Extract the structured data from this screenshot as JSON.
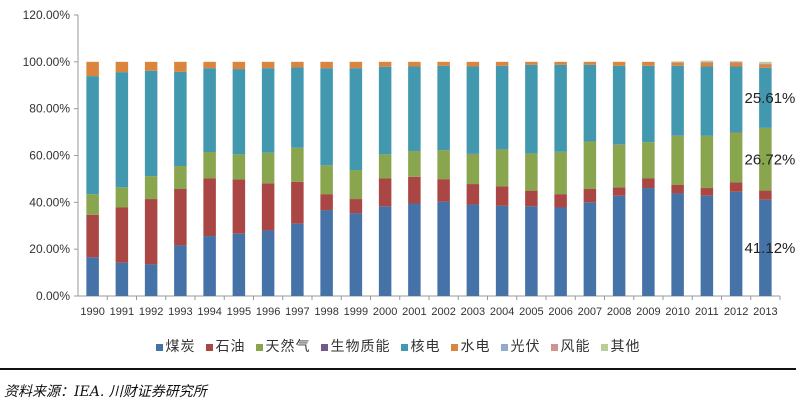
{
  "chart_data": {
    "type": "bar",
    "stacked": true,
    "title": "",
    "xlabel": "",
    "ylabel": "",
    "ylim": [
      0,
      120
    ],
    "yticks": [
      "0.00%",
      "20.00%",
      "40.00%",
      "60.00%",
      "80.00%",
      "100.00%",
      "120.00%"
    ],
    "categories": [
      "1990",
      "1991",
      "1992",
      "1993",
      "1994",
      "1995",
      "1996",
      "1997",
      "1998",
      "1999",
      "2000",
      "2001",
      "2002",
      "2003",
      "2004",
      "2005",
      "2006",
      "2007",
      "2008",
      "2009",
      "2010",
      "2011",
      "2012",
      "2013"
    ],
    "series": [
      {
        "name": "煤炭",
        "color": "#4572A7",
        "values": [
          16.5,
          14.2,
          13.5,
          21.6,
          25.6,
          26.6,
          28.0,
          30.9,
          36.7,
          35.4,
          38.3,
          39.5,
          40.3,
          39.1,
          38.5,
          38.3,
          37.8,
          40.0,
          42.8,
          46.1,
          43.8,
          42.8,
          44.5,
          41.12
        ]
      },
      {
        "name": "石油",
        "color": "#AA4643",
        "values": [
          18.2,
          23.6,
          27.9,
          24.1,
          24.6,
          23.2,
          20.1,
          17.9,
          6.8,
          6.0,
          11.9,
          11.4,
          9.6,
          8.7,
          8.3,
          6.7,
          5.7,
          5.7,
          3.6,
          4.1,
          3.6,
          3.3,
          4.0,
          3.9
        ]
      },
      {
        "name": "天然气",
        "color": "#89A54E",
        "values": [
          8.8,
          8.6,
          9.8,
          9.8,
          11.3,
          10.7,
          13.1,
          14.5,
          12.3,
          12.4,
          10.3,
          11.0,
          12.4,
          12.7,
          15.8,
          15.9,
          18.1,
          20.3,
          18.2,
          15.5,
          21.0,
          22.3,
          21.3,
          26.72
        ]
      },
      {
        "name": "生物质能",
        "color": "#71588F",
        "values": [
          0,
          0,
          0,
          0,
          0,
          0,
          0,
          0,
          0,
          0,
          0,
          0,
          0,
          0.2,
          0,
          0,
          0,
          0,
          0.2,
          0,
          0.2,
          0,
          0.2,
          0.1
        ]
      },
      {
        "name": "核电",
        "color": "#4198AF",
        "values": [
          50.4,
          49.2,
          45.0,
          40.2,
          35.8,
          36.4,
          36.1,
          34.3,
          41.5,
          43.5,
          37.4,
          36.1,
          36.0,
          37.3,
          35.7,
          37.8,
          37.1,
          32.7,
          33.5,
          32.6,
          29.7,
          29.6,
          28.0,
          25.61
        ]
      },
      {
        "name": "水电",
        "color": "#DB843D",
        "values": [
          6.1,
          4.4,
          3.8,
          4.3,
          2.7,
          3.1,
          2.7,
          2.4,
          2.7,
          2.7,
          2.1,
          2.0,
          1.7,
          2.0,
          1.7,
          1.3,
          1.3,
          1.3,
          1.7,
          1.7,
          1.4,
          1.7,
          1.7,
          1.4
        ]
      },
      {
        "name": "光伏",
        "color": "#93A9CF",
        "values": [
          0,
          0,
          0,
          0,
          0,
          0,
          0,
          0,
          0,
          0,
          0,
          0,
          0,
          0,
          0,
          0,
          0,
          0,
          0,
          0,
          0.1,
          0.2,
          0.2,
          0.3
        ]
      },
      {
        "name": "风能",
        "color": "#D19392",
        "values": [
          0,
          0,
          0,
          0,
          0,
          0,
          0,
          0,
          0,
          0,
          0,
          0,
          0,
          0,
          0,
          0,
          0,
          0,
          0,
          0,
          0.1,
          0.1,
          0.1,
          0.2
        ]
      },
      {
        "name": "其他",
        "color": "#B9CD96",
        "values": [
          0,
          0,
          0,
          0,
          0,
          0,
          0,
          0,
          0,
          0,
          0,
          0,
          0,
          0,
          0,
          0,
          0,
          0,
          0,
          0,
          0.3,
          0.5,
          0.3,
          0.65
        ]
      }
    ],
    "data_labels": [
      {
        "category": "2013",
        "series": "核电",
        "text": "25.61%"
      },
      {
        "category": "2013",
        "series": "天然气",
        "text": "26.72%"
      },
      {
        "category": "2013",
        "series": "煤炭",
        "text": "41.12%"
      }
    ],
    "grid": false,
    "legend_position": "bottom"
  },
  "source": "资料来源：IEA. 川财证券研究所"
}
